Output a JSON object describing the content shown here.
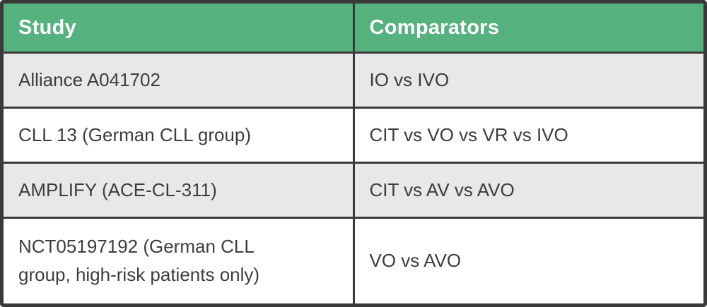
{
  "table": {
    "columns": [
      "Study",
      "Comparators"
    ],
    "rows": [
      {
        "study": "Alliance A041702",
        "comparators": "IO vs IVO"
      },
      {
        "study": "CLL 13 (German CLL group)",
        "comparators": "CIT vs VO vs VR vs IVO"
      },
      {
        "study": "AMPLIFY (ACE-CL-311)",
        "comparators": "CIT vs AV vs AVO"
      },
      {
        "study": "NCT05197192 (German CLL group, high-risk patients only)",
        "comparators": "VO vs AVO"
      }
    ],
    "colors": {
      "header_bg": "#55B17D",
      "header_text": "#FFFFFF",
      "border": "#3A3A3A",
      "row_alt_bg": "#E8E8E8",
      "row_bg": "#FFFFFF",
      "cell_text": "#3D3D3D"
    }
  }
}
